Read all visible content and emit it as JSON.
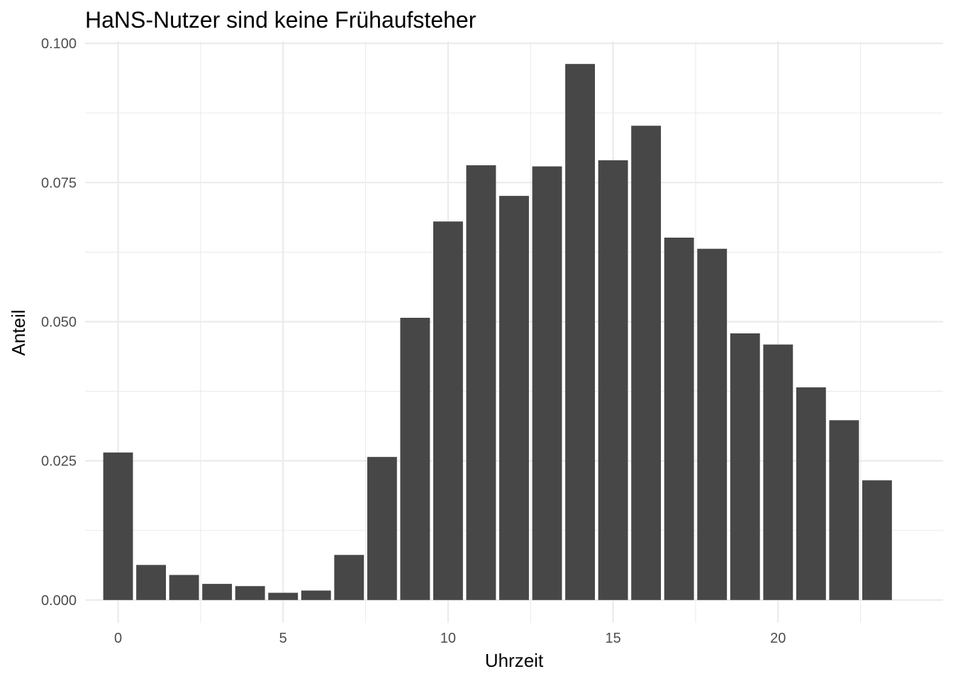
{
  "chart_data": {
    "type": "bar",
    "title": "HaNS-Nutzer sind keine Frühaufsteher",
    "xlabel": "Uhrzeit",
    "ylabel": "Anteil",
    "categories": [
      0,
      1,
      2,
      3,
      4,
      5,
      6,
      7,
      8,
      9,
      10,
      11,
      12,
      13,
      14,
      15,
      16,
      17,
      18,
      19,
      20,
      21,
      22,
      23
    ],
    "values": [
      0.0265,
      0.0063,
      0.0045,
      0.0029,
      0.0025,
      0.0013,
      0.0017,
      0.0081,
      0.0257,
      0.0507,
      0.068,
      0.0781,
      0.0726,
      0.0779,
      0.0963,
      0.079,
      0.0852,
      0.0651,
      0.0631,
      0.0479,
      0.0459,
      0.0382,
      0.0323,
      0.0215
    ],
    "xlim": [
      -1.0,
      25.0
    ],
    "ylim": [
      -0.0041,
      0.1004
    ],
    "x_ticks": [
      0,
      5,
      10,
      15,
      20
    ],
    "x_tick_labels": [
      "0",
      "5",
      "10",
      "15",
      "20"
    ],
    "y_ticks": [
      0,
      0.025,
      0.05,
      0.075,
      0.1
    ],
    "y_tick_labels": [
      "0.000",
      "0.025",
      "0.050",
      "0.075",
      "0.100"
    ],
    "grid": true,
    "legend": "none",
    "bar_color": "#474747",
    "grid_color": "#ebebeb"
  }
}
